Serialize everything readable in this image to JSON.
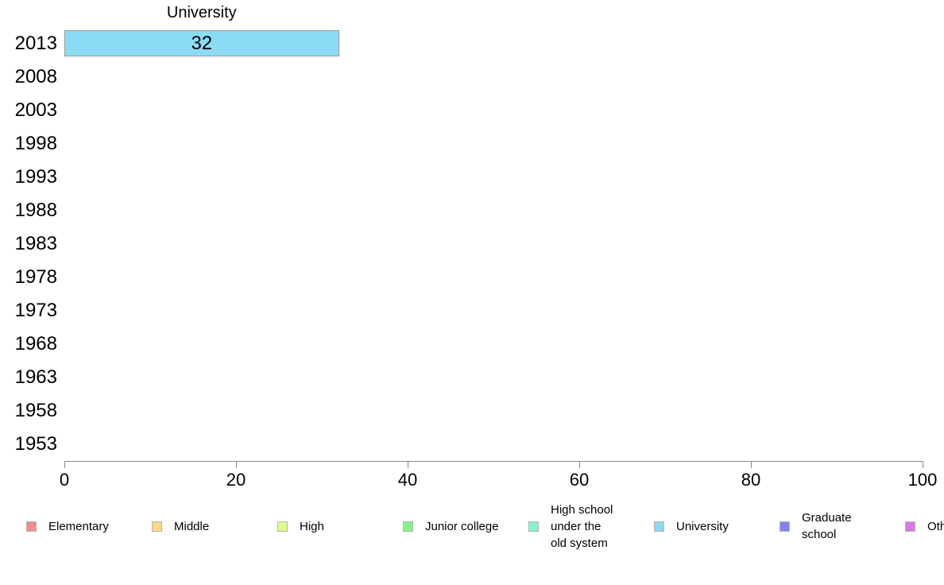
{
  "chart_data": {
    "type": "bar",
    "orientation": "horizontal",
    "title": "University",
    "categories": [
      "2013",
      "2008",
      "2003",
      "1998",
      "1993",
      "1988",
      "1983",
      "1978",
      "1973",
      "1968",
      "1963",
      "1958",
      "1953"
    ],
    "bars": [
      {
        "category": "2013",
        "series": "University",
        "value": 32,
        "label": "32",
        "color": "#8bdbf5",
        "border_color": "#999999"
      }
    ],
    "xlim": [
      0,
      100
    ],
    "x_ticks": [
      0,
      20,
      40,
      60,
      80,
      100
    ],
    "grid": false,
    "axis_color": "#888888",
    "legend_position": "bottom",
    "legend": [
      {
        "label": "Elementary",
        "color": "#f48a8a"
      },
      {
        "label": "Middle",
        "color": "#ffd985"
      },
      {
        "label": "High",
        "color": "#dcfc8d"
      },
      {
        "label": "Junior college",
        "color": "#85f285"
      },
      {
        "label": "High school\nunder the\nold system",
        "color": "#85f2cf"
      },
      {
        "label": "University",
        "color": "#8bdbf5"
      },
      {
        "label": "Graduate\nschool",
        "color": "#8383f0"
      },
      {
        "label": "Other",
        "color": "#d779e8"
      }
    ]
  }
}
